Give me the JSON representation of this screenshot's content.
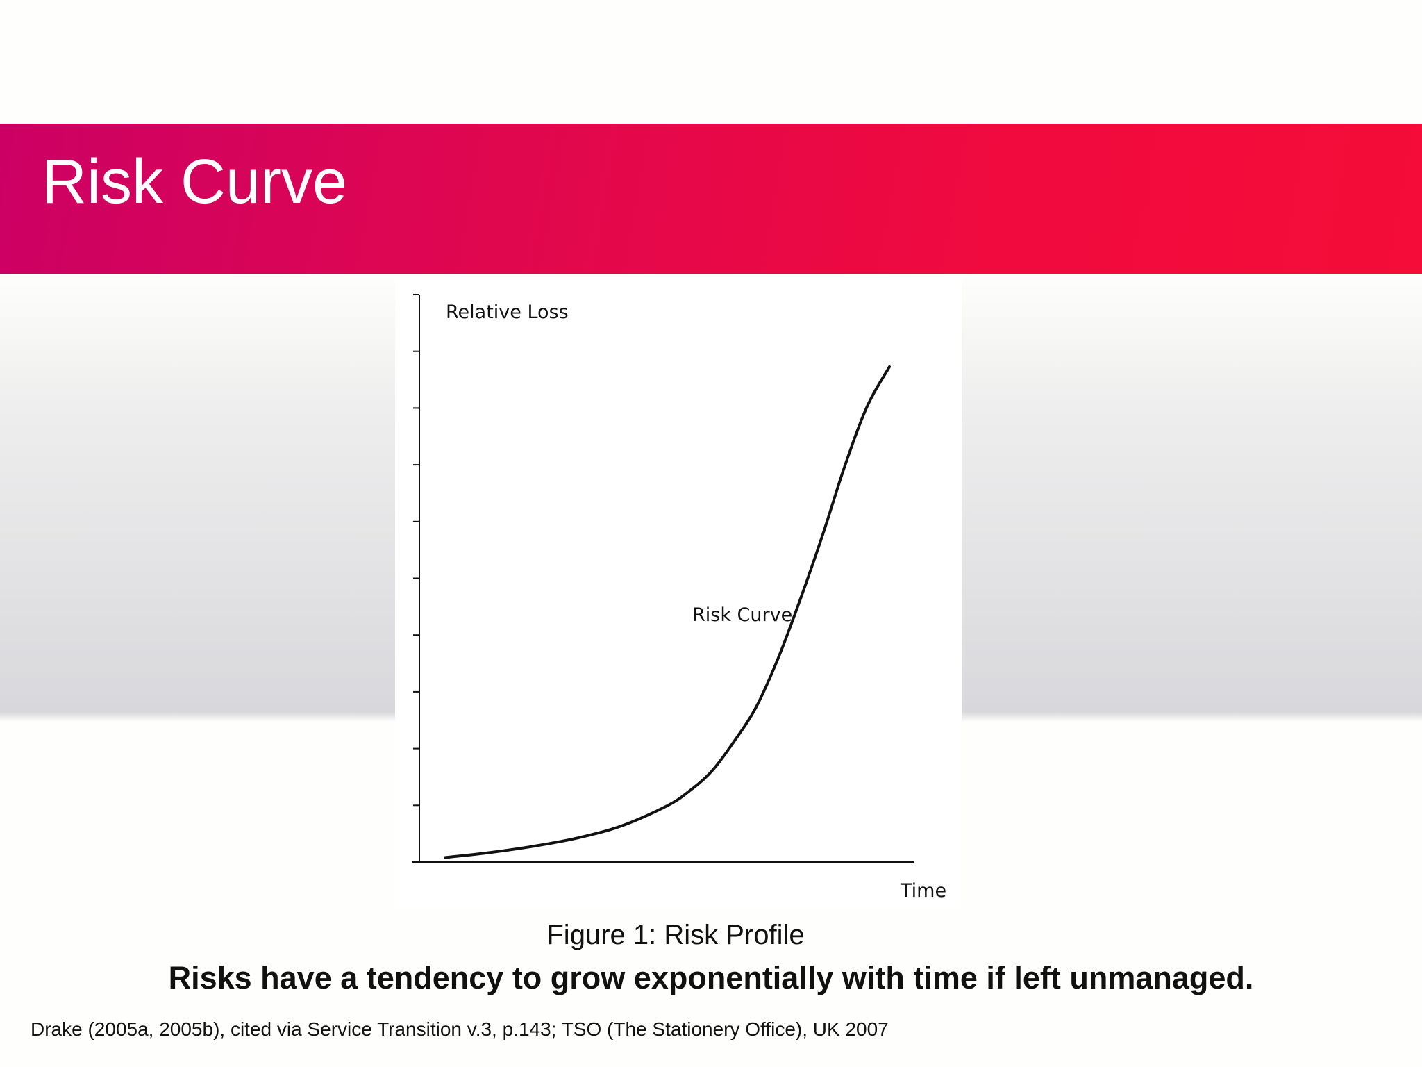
{
  "slide": {
    "title": "Risk Curve",
    "caption": "Figure 1: Risk Profile",
    "statement": "Risks have a tendency to grow exponentially with time if left unmanaged.",
    "citation": "Drake (2005a, 2005b), cited via Service Transition v.3, p.143; TSO (The Stationery Office), UK 2007"
  },
  "colors": {
    "title_bar_start": "#cc0064",
    "title_bar_end": "#f50c38",
    "curve": "#111111"
  },
  "chart_data": {
    "type": "line",
    "title": "",
    "xlabel": "Time",
    "ylabel": "Relative Loss",
    "annotation": "Risk Curve",
    "grid": false,
    "legend": "none",
    "y_tick_count": 11,
    "xlim": [
      0,
      100
    ],
    "ylim": [
      0,
      100
    ],
    "series": [
      {
        "name": "Risk Curve",
        "x": [
          0,
          10,
          20,
          30,
          40,
          50,
          55,
          60,
          65,
          70,
          75,
          80,
          85,
          90,
          95,
          100
        ],
        "y": [
          0.5,
          1.5,
          2.8,
          4.5,
          7,
          11,
          14,
          18,
          24,
          31,
          41,
          53,
          66,
          80,
          92,
          100
        ]
      }
    ]
  }
}
